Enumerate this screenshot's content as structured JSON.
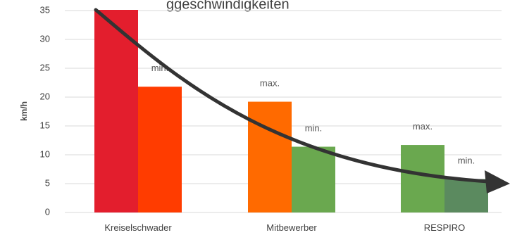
{
  "chart_data": {
    "type": "bar",
    "title": "ggeschwindigkeiten",
    "xlabel": "",
    "ylabel": "km/h",
    "ylim": [
      0,
      35
    ],
    "yticks": [
      0,
      5,
      10,
      15,
      20,
      25,
      30,
      35
    ],
    "grid": true,
    "legend": "none",
    "categories": [
      "Kreiselschwader",
      "Mitbewerber",
      "RESPIRO"
    ],
    "series": [
      {
        "values": [
          35.2,
          19.2,
          11.7
        ],
        "labels": [
          "",
          "max.",
          "max."
        ],
        "colors": [
          "#e31e2d",
          "#ff6a00",
          "#6aa84f"
        ]
      },
      {
        "values": [
          21.8,
          11.4,
          5.8
        ],
        "labels": [
          "min.",
          "min.",
          "min."
        ],
        "colors": [
          "#ff3c00",
          "#6aa84f",
          "#5b8a5f"
        ]
      }
    ],
    "annotation": {
      "type": "trend-arrow",
      "color": "#333333"
    }
  }
}
